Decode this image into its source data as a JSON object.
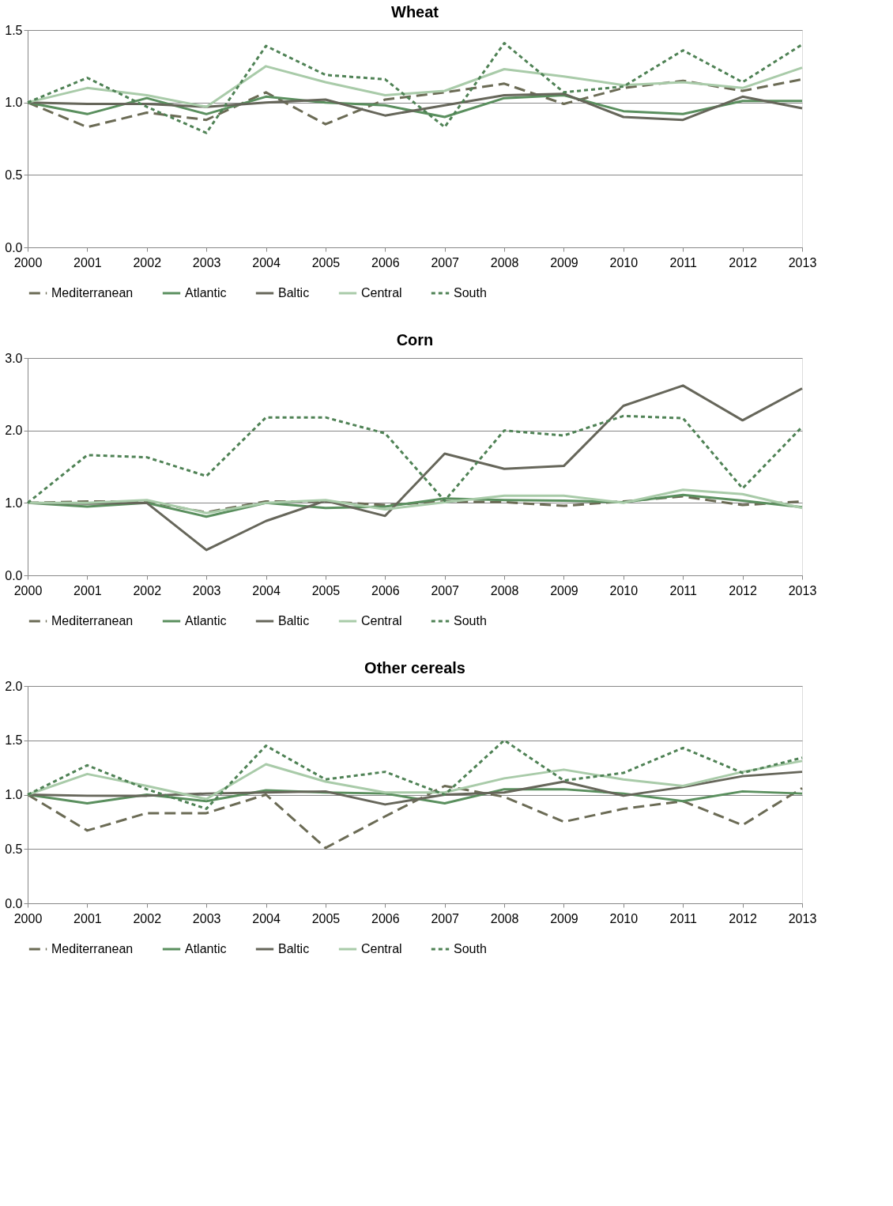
{
  "chart_data": [
    {
      "type": "line",
      "title": "Wheat",
      "categories": [
        "2000",
        "2001",
        "2002",
        "2003",
        "2004",
        "2005",
        "2006",
        "2007",
        "2008",
        "2009",
        "2010",
        "2011",
        "2012",
        "2013"
      ],
      "ylim": [
        0,
        1.5
      ],
      "yticks": [
        {
          "value": 0,
          "label": "0.0"
        },
        {
          "value": 0.5,
          "label": "0.5"
        },
        {
          "value": 1,
          "label": "1.0"
        },
        {
          "value": 1.5,
          "label": "1.5"
        }
      ],
      "grid": "y",
      "legend": "bottom",
      "series": [
        {
          "name": "Mediterranean",
          "color": "#6b6b55",
          "line_style": "dashed",
          "values": [
            1.0,
            0.83,
            0.93,
            0.88,
            1.07,
            0.85,
            1.02,
            1.07,
            1.13,
            0.99,
            1.1,
            1.15,
            1.08,
            1.16
          ]
        },
        {
          "name": "Atlantic",
          "color": "#5a8f5e",
          "line_style": "solid",
          "values": [
            1.0,
            0.92,
            1.03,
            0.92,
            1.04,
            1.0,
            0.98,
            0.9,
            1.03,
            1.05,
            0.94,
            0.92,
            1.01,
            1.01
          ]
        },
        {
          "name": "Baltic",
          "color": "#66665a",
          "line_style": "solid",
          "values": [
            1.0,
            0.99,
            0.99,
            0.97,
            1.0,
            1.02,
            0.91,
            0.98,
            1.05,
            1.06,
            0.9,
            0.88,
            1.04,
            0.96
          ]
        },
        {
          "name": "Central",
          "color": "#a9cba9",
          "line_style": "solid",
          "values": [
            1.0,
            1.1,
            1.05,
            0.97,
            1.25,
            1.14,
            1.05,
            1.08,
            1.23,
            1.18,
            1.12,
            1.14,
            1.1,
            1.24
          ]
        },
        {
          "name": "South",
          "color": "#4f8255",
          "line_style": "dotted",
          "values": [
            1.0,
            1.17,
            0.97,
            0.79,
            1.39,
            1.19,
            1.16,
            0.83,
            1.41,
            1.07,
            1.11,
            1.36,
            1.14,
            1.4
          ]
        }
      ]
    },
    {
      "type": "line",
      "title": "Corn",
      "categories": [
        "2000",
        "2001",
        "2002",
        "2003",
        "2004",
        "2005",
        "2006",
        "2007",
        "2008",
        "2009",
        "2010",
        "2011",
        "2012",
        "2013"
      ],
      "ylim": [
        0,
        3
      ],
      "yticks": [
        {
          "value": 0,
          "label": "0.0"
        },
        {
          "value": 1,
          "label": "1.0"
        },
        {
          "value": 2,
          "label": "2.0"
        },
        {
          "value": 3,
          "label": "3.0"
        }
      ],
      "grid": "y",
      "legend": "bottom",
      "series": [
        {
          "name": "Mediterranean",
          "color": "#6b6b55",
          "line_style": "dashed",
          "values": [
            1.0,
            1.02,
            1.02,
            0.87,
            1.02,
            1.02,
            0.97,
            1.02,
            1.01,
            0.96,
            1.02,
            1.09,
            0.97,
            1.02
          ]
        },
        {
          "name": "Atlantic",
          "color": "#5a8f5e",
          "line_style": "solid",
          "values": [
            1.0,
            0.95,
            1.0,
            0.81,
            1.0,
            0.93,
            0.95,
            1.06,
            1.04,
            1.03,
            1.01,
            1.11,
            1.03,
            0.94
          ]
        },
        {
          "name": "Baltic",
          "color": "#66665a",
          "line_style": "solid",
          "values": [
            1.0,
            0.99,
            1.0,
            0.35,
            0.75,
            1.03,
            0.82,
            1.68,
            1.47,
            1.51,
            2.34,
            2.62,
            2.14,
            2.58
          ]
        },
        {
          "name": "Central",
          "color": "#a9cba9",
          "line_style": "solid",
          "values": [
            1.0,
            1.0,
            1.04,
            0.86,
            1.0,
            1.04,
            0.91,
            1.01,
            1.1,
            1.1,
            1.0,
            1.18,
            1.12,
            0.93
          ]
        },
        {
          "name": "South",
          "color": "#4f8255",
          "line_style": "dotted",
          "values": [
            1.0,
            1.66,
            1.63,
            1.37,
            2.18,
            2.18,
            1.96,
            1.03,
            2.0,
            1.93,
            2.2,
            2.17,
            1.2,
            2.05
          ]
        }
      ]
    },
    {
      "type": "line",
      "title": "Other cereals",
      "categories": [
        "2000",
        "2001",
        "2002",
        "2003",
        "2004",
        "2005",
        "2006",
        "2007",
        "2008",
        "2009",
        "2010",
        "2011",
        "2012",
        "2013"
      ],
      "ylim": [
        0,
        2
      ],
      "yticks": [
        {
          "value": 0,
          "label": "0.0"
        },
        {
          "value": 0.5,
          "label": "0.5"
        },
        {
          "value": 1,
          "label": "1.0"
        },
        {
          "value": 1.5,
          "label": "1.5"
        },
        {
          "value": 2,
          "label": "2.0"
        }
      ],
      "grid": "y",
      "legend": "bottom",
      "series": [
        {
          "name": "Mediterranean",
          "color": "#6b6b55",
          "line_style": "dashed",
          "values": [
            1.0,
            0.67,
            0.83,
            0.83,
            1.0,
            0.51,
            0.8,
            1.08,
            0.98,
            0.75,
            0.87,
            0.94,
            0.72,
            1.06
          ]
        },
        {
          "name": "Atlantic",
          "color": "#5a8f5e",
          "line_style": "solid",
          "values": [
            1.0,
            0.92,
            1.0,
            0.94,
            1.04,
            1.02,
            1.01,
            0.92,
            1.05,
            1.05,
            1.01,
            0.94,
            1.03,
            1.01
          ]
        },
        {
          "name": "Baltic",
          "color": "#66665a",
          "line_style": "solid",
          "values": [
            1.0,
            0.99,
            0.99,
            1.01,
            1.02,
            1.03,
            0.91,
            1.0,
            1.02,
            1.12,
            0.99,
            1.07,
            1.17,
            1.21
          ]
        },
        {
          "name": "Central",
          "color": "#a9cba9",
          "line_style": "solid",
          "values": [
            1.0,
            1.19,
            1.08,
            0.96,
            1.28,
            1.12,
            1.02,
            1.02,
            1.15,
            1.23,
            1.14,
            1.08,
            1.21,
            1.31
          ]
        },
        {
          "name": "South",
          "color": "#4f8255",
          "line_style": "dotted",
          "values": [
            1.0,
            1.27,
            1.05,
            0.87,
            1.45,
            1.14,
            1.21,
            1.0,
            1.5,
            1.13,
            1.2,
            1.43,
            1.2,
            1.34
          ]
        }
      ]
    }
  ]
}
